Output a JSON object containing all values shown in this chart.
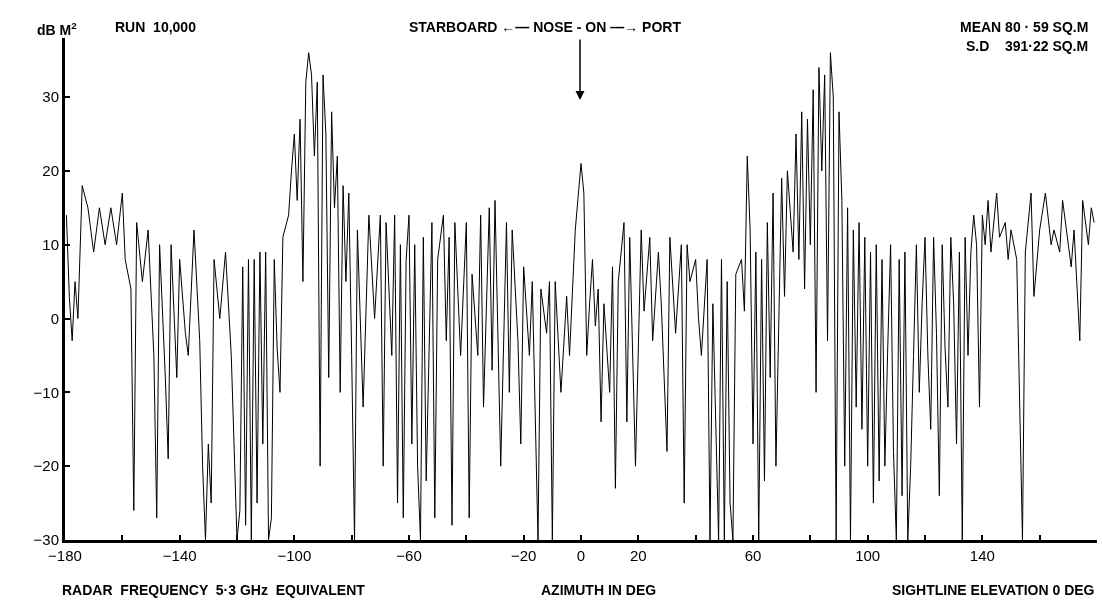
{
  "chart_data": {
    "type": "line",
    "xlabel": "AZIMUTH IN DEG",
    "ylabel": "dB M$^{2}$",
    "annotations": [
      "RUN  10,000",
      "STARBOARD ←— NOSE - ON —→ PORT",
      "MEAN 80 · 59 SQ.M",
      "S.D    391·22 SQ.M",
      "RADAR  FREQUENCY  5·3 GHz  EQUIVALENT",
      "SIGHTLINE ELEVATION 0 DEG"
    ],
    "xlim": [
      -180,
      180
    ],
    "xticks": [
      -180,
      {
        "value": -160,
        "label": null
      },
      -140,
      {
        "value": -120,
        "label": null
      },
      -100,
      {
        "value": -80,
        "label": null
      },
      -60,
      {
        "value": -40,
        "label": null
      },
      -20,
      0,
      20,
      {
        "value": 40,
        "label": null
      },
      60,
      {
        "value": 80,
        "label": null
      },
      100,
      {
        "value": 120,
        "label": null
      },
      140,
      {
        "value": 160,
        "label": null
      }
    ],
    "ylim": [
      -30,
      38
    ],
    "yticks": [
      -30,
      -20,
      -10,
      0,
      10,
      20,
      30
    ],
    "marker": "none",
    "line_style": "solid",
    "series": [
      {
        "color": "#000000",
        "x": [
          -179.5,
          -178.5,
          -177.5,
          -176.5,
          -175.5,
          -174,
          -172,
          -170,
          -168,
          -166,
          -164,
          -162,
          -160,
          -159,
          -157,
          -156,
          -155,
          -153,
          -151,
          -149,
          -148,
          -147,
          -145,
          -144,
          -143,
          -141,
          -140,
          -138,
          -137,
          -135,
          -133,
          -132,
          -131,
          -130,
          -129,
          -128,
          -126,
          -124,
          -122,
          -120,
          -119,
          -118,
          -117,
          -116,
          -115,
          -114,
          -113,
          -112,
          -111,
          -110,
          -109,
          -108,
          -107,
          -106,
          -105,
          -104,
          -102,
          -101,
          -100,
          -99,
          -98,
          -97,
          -96,
          -95,
          -94,
          -93,
          -92,
          -91,
          -90,
          -89,
          -88,
          -87,
          -86,
          -85,
          -84,
          -83,
          -82,
          -81,
          -80,
          -79,
          -78,
          -76,
          -74,
          -72,
          -70,
          -69,
          -68,
          -66,
          -65,
          -64,
          -63,
          -62,
          -61,
          -60,
          -59,
          -58,
          -57,
          -56,
          -55,
          -54,
          -52,
          -51,
          -50,
          -48,
          -47,
          -46,
          -45,
          -44,
          -42,
          -40,
          -39,
          -38,
          -36,
          -35,
          -34,
          -32,
          -31,
          -30,
          -28,
          -26,
          -25,
          -24,
          -22,
          -21,
          -20,
          -18,
          -17,
          -15,
          -14,
          -12,
          -11,
          -10,
          -9,
          -7,
          -5,
          -4,
          -2,
          0,
          1,
          2,
          3,
          4,
          5,
          6,
          7,
          8,
          10,
          11,
          12,
          13,
          15,
          16,
          17,
          19,
          21,
          22,
          24,
          25,
          27,
          28,
          30,
          31,
          33,
          35,
          36,
          37,
          38,
          40,
          41,
          42,
          44,
          45,
          46,
          48,
          49,
          50,
          51,
          52,
          53,
          54,
          56,
          57,
          58,
          59,
          60,
          61,
          62,
          63,
          64,
          65,
          66,
          67,
          68,
          70,
          71,
          72,
          74,
          75,
          76,
          77,
          78,
          79,
          80,
          81,
          82,
          83,
          84,
          85,
          86,
          87,
          88,
          89,
          90,
          91,
          92,
          93,
          94,
          95,
          96,
          97,
          98,
          99,
          100,
          101,
          102,
          103,
          104,
          105,
          106,
          107,
          108,
          109,
          110,
          111,
          112,
          113,
          114,
          115,
          116,
          117,
          118,
          119,
          120,
          121,
          122,
          123,
          124,
          125,
          126,
          127,
          128,
          129,
          130,
          131,
          132,
          133,
          134,
          135,
          136,
          137,
          138,
          139,
          140,
          141,
          142,
          143,
          145,
          146,
          148,
          149,
          150,
          152,
          154,
          155,
          157,
          158,
          160,
          162,
          164,
          165,
          167,
          168,
          170,
          171,
          172,
          174,
          175,
          177,
          178,
          179
        ],
        "values": [
          14,
          3,
          -3,
          5,
          0,
          18,
          15,
          9,
          15,
          10,
          15,
          10,
          17,
          8,
          4,
          -26,
          13,
          5,
          12,
          -5,
          -27,
          10,
          -8,
          -19,
          10,
          -8,
          8,
          -2,
          -5,
          12,
          -3,
          -20,
          -30,
          -17,
          -25,
          8,
          0,
          9,
          -5,
          -30,
          -26,
          7,
          -28,
          8,
          -30,
          8,
          -25,
          9,
          -17,
          9,
          -30,
          -27,
          8,
          -4,
          -10,
          11,
          14,
          20,
          25,
          16,
          27,
          5,
          32,
          36,
          33,
          22,
          32,
          -20,
          33,
          25,
          -8,
          28,
          15,
          22,
          -10,
          18,
          5,
          17,
          -5,
          -30,
          12,
          -12,
          14,
          0,
          14,
          -20,
          13,
          -5,
          14,
          -25,
          10,
          -27,
          8,
          14,
          -17,
          10,
          -20,
          -30,
          11,
          -22,
          13,
          -27,
          8,
          14,
          -3,
          11,
          -28,
          13,
          -5,
          13,
          -27,
          6,
          -5,
          14,
          -12,
          15,
          -7,
          16,
          -20,
          13,
          -10,
          12,
          -3,
          -17,
          7,
          -5,
          5,
          -30,
          4,
          -2,
          5,
          -30,
          5,
          -10,
          3,
          -5,
          12,
          21,
          17,
          -5,
          2,
          8,
          -1,
          4,
          -14,
          2,
          -10,
          7,
          -23,
          5,
          13,
          -14,
          11,
          -20,
          12,
          1,
          11,
          -3,
          9,
          2,
          -18,
          11,
          -2,
          10,
          -25,
          10,
          5,
          8,
          0,
          -5,
          8,
          -30,
          2,
          -30,
          8,
          -30,
          5,
          -25,
          -30,
          6,
          8,
          1,
          22,
          12,
          -17,
          9,
          -30,
          8,
          -22,
          13,
          -8,
          17,
          -20,
          19,
          3,
          20,
          9,
          25,
          8,
          28,
          4,
          27,
          10,
          31,
          -10,
          34,
          20,
          33,
          -3,
          36,
          30,
          -30,
          28,
          16,
          -20,
          15,
          -30,
          12,
          -12,
          13,
          -15,
          11,
          -20,
          9,
          -25,
          10,
          -22,
          8,
          -20,
          -4,
          10,
          -18,
          -30,
          8,
          -24,
          9,
          -30,
          -20,
          -5,
          10,
          -10,
          2,
          11,
          -5,
          -15,
          11,
          -2,
          -24,
          10,
          -4,
          -12,
          11,
          2,
          -17,
          9,
          -30,
          11,
          -5,
          9,
          14,
          10,
          -12,
          14,
          10,
          16,
          9,
          17,
          11,
          13,
          8,
          12,
          8,
          -30,
          9,
          17,
          3,
          12,
          17,
          10,
          12,
          9,
          16,
          10,
          7,
          12,
          -3,
          16,
          10,
          15,
          13
        ]
      }
    ]
  }
}
